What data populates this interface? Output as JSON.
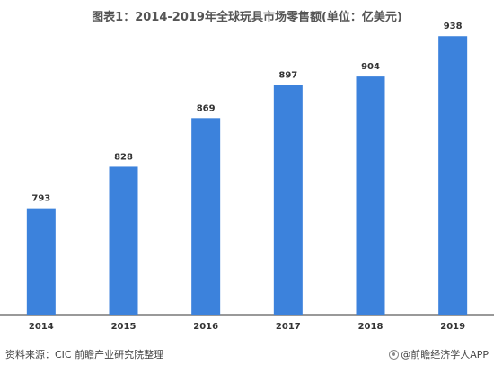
{
  "title": "图表1：2014-2019年全球玩具市场零售额(单位：亿美元)",
  "source": "资料来源：CIC  前瞻产业研究院整理",
  "watermark": "@前瞻经济学人APP",
  "colors": {
    "bar": "#3c82dc",
    "axis": "#333333",
    "label": "#333333"
  },
  "chart_data": {
    "type": "bar",
    "title": "图表1：2014-2019年全球玩具市场零售额(单位：亿美元)",
    "categories": [
      "2014",
      "2015",
      "2016",
      "2017",
      "2018",
      "2019"
    ],
    "values": [
      793,
      828,
      869,
      897,
      904,
      938
    ],
    "data_labels": [
      "793",
      "828",
      "869",
      "897",
      "904",
      "938"
    ],
    "xlabel": "",
    "ylabel": "",
    "grid": false
  }
}
